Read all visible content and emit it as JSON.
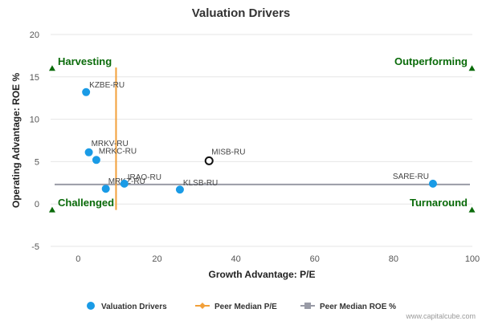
{
  "chart_data": {
    "type": "scatter",
    "title": "Valuation Drivers",
    "xlabel": "Growth Advantage: P/E",
    "ylabel": "Operating Advantage: ROE %",
    "xlim": [
      -7,
      100
    ],
    "ylim": [
      -5,
      20
    ],
    "x_ticks": [
      "0",
      "20",
      "40",
      "60",
      "80",
      "100"
    ],
    "y_ticks": [
      "-5",
      "0",
      "5",
      "10",
      "15",
      "20"
    ],
    "grid": "horizontal",
    "legend_position": "bottom",
    "series": [
      {
        "name": "Valuation Drivers",
        "color": "#1a9be6",
        "points": [
          {
            "label": "KZBE-RU",
            "x": 2.0,
            "y": 13.2
          },
          {
            "label": "MRKV-RU",
            "x": 2.7,
            "y": 6.1
          },
          {
            "label": "MRKC-RU",
            "x": 4.6,
            "y": 5.2
          },
          {
            "label": "MRKZ-RU",
            "x": 7.0,
            "y": 1.8
          },
          {
            "label": "IRAO-RU",
            "x": 11.7,
            "y": 2.4
          },
          {
            "label": "KLSB-RU",
            "x": 25.8,
            "y": 1.7
          },
          {
            "label": "SARE-RU",
            "x": 90.0,
            "y": 2.4
          }
        ]
      }
    ],
    "highlight": {
      "label": "MISB-RU",
      "x": 33.2,
      "y": 5.1,
      "color": "#111111"
    },
    "peer_median_pe": {
      "name": "Peer Median P/E",
      "x": 9.6,
      "y_range": [
        -0.7,
        16.1
      ],
      "color": "#f2a03a"
    },
    "peer_median_roe": {
      "name": "Peer Median ROE %",
      "y": 2.3,
      "color": "#999ba6"
    },
    "quadrants": {
      "top_left": "Harvesting",
      "top_right": "Outperforming",
      "bottom_left": "Challenged",
      "bottom_right": "Turnaround"
    },
    "watermark": "www.capitalcube.com"
  }
}
